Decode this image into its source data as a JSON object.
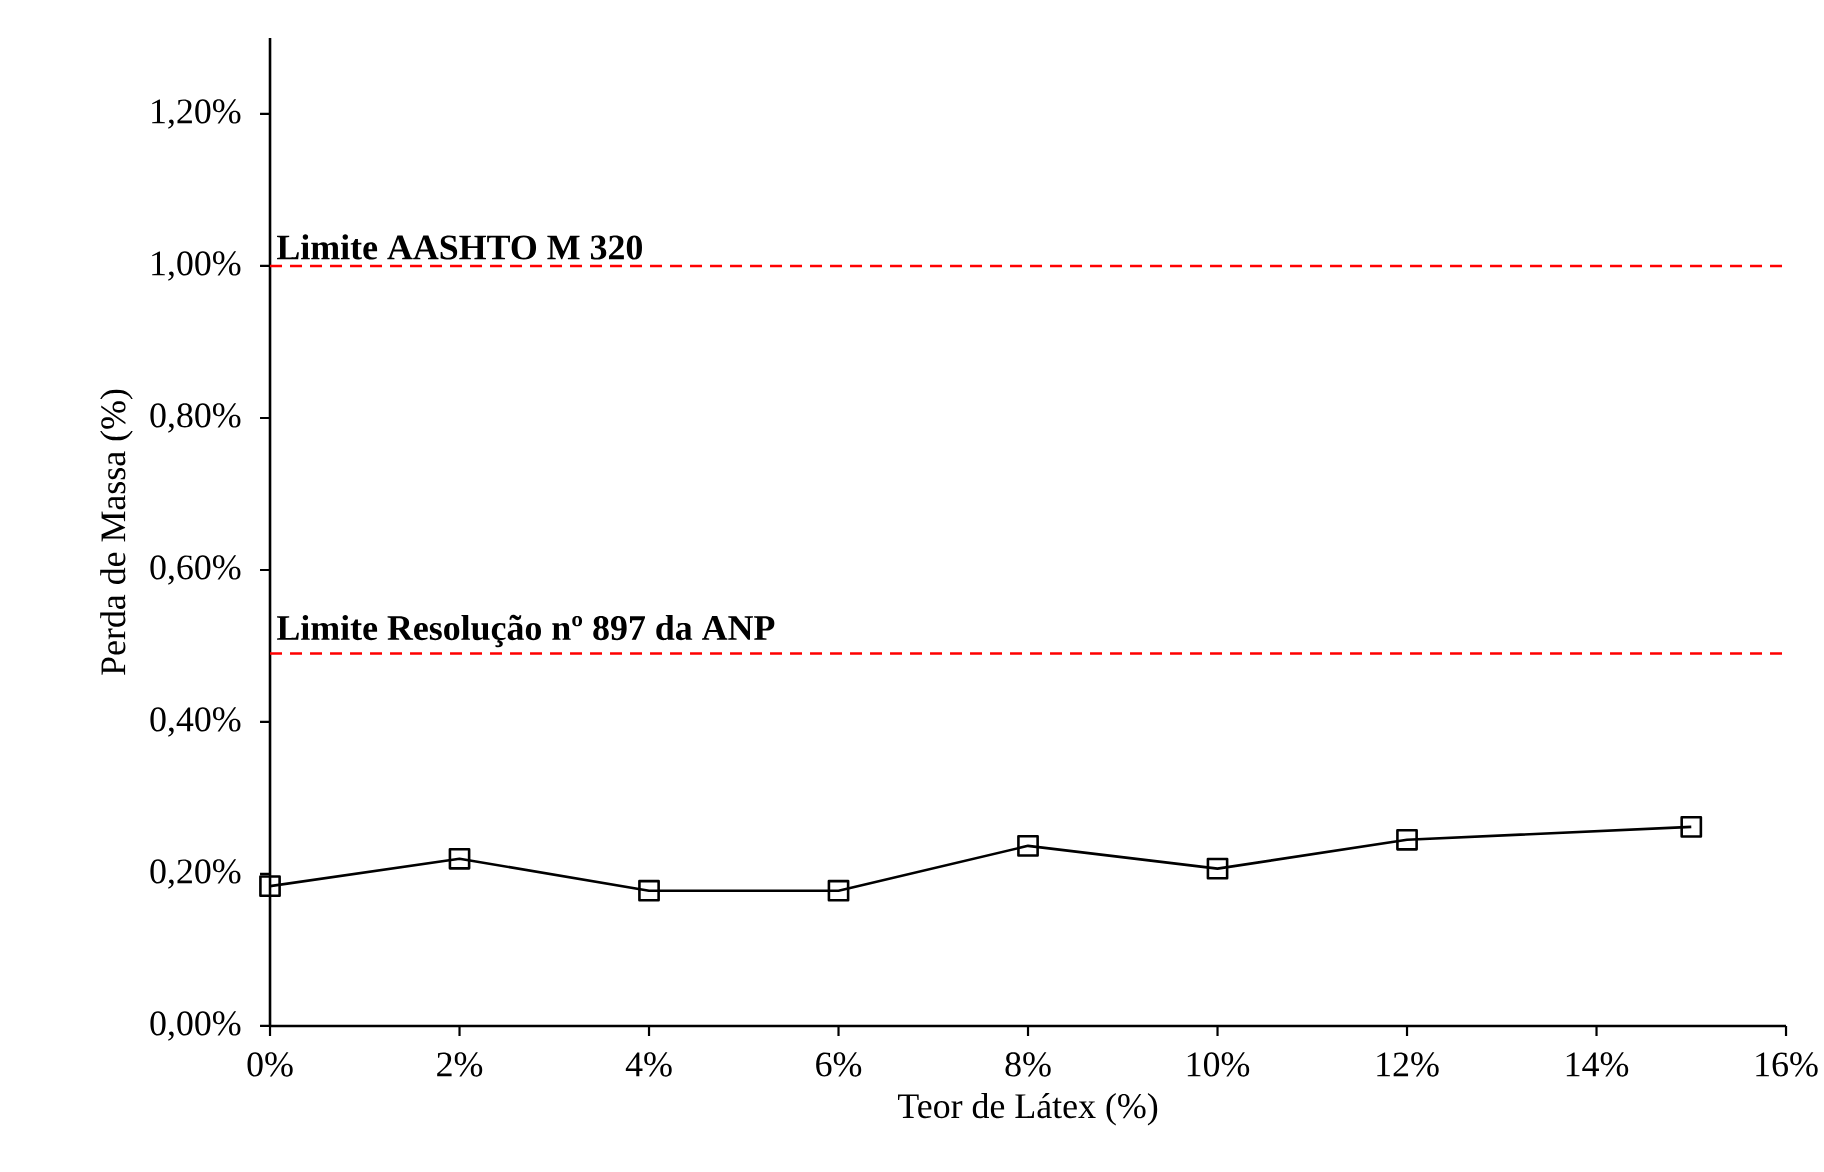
{
  "chart_data": {
    "type": "line",
    "xlabel": "Teor de Látex (%)",
    "ylabel": "Perda de Massa (%)",
    "x": [
      0,
      2,
      4,
      6,
      8,
      10,
      12,
      15
    ],
    "series": [
      {
        "color": "#000000",
        "values": [
          0.184,
          0.22,
          0.178,
          0.178,
          0.237,
          0.207,
          0.245,
          0.262
        ]
      }
    ],
    "xlim": [
      0,
      16
    ],
    "xticks": [
      {
        "value": 0,
        "label": "0%"
      },
      {
        "value": 2,
        "label": "2%"
      },
      {
        "value": 4,
        "label": "4%"
      },
      {
        "value": 6,
        "label": "6%"
      },
      {
        "value": 8,
        "label": "8%"
      },
      {
        "value": 10,
        "label": "10%"
      },
      {
        "value": 12,
        "label": "12%"
      },
      {
        "value": 14,
        "label": "14%"
      },
      {
        "value": 16,
        "label": "16%"
      }
    ],
    "ylim": [
      0,
      1.3
    ],
    "yticks": [
      {
        "value": 0,
        "label": "0,00%"
      },
      {
        "value": 0.2,
        "label": "0,20%"
      },
      {
        "value": 0.4,
        "label": "0,40%"
      },
      {
        "value": 0.6,
        "label": "0,60%"
      },
      {
        "value": 0.8,
        "label": "0,80%"
      },
      {
        "value": 1.0,
        "label": "1,00%"
      },
      {
        "value": 1.2,
        "label": "1,20%"
      }
    ],
    "ref_lines": [
      {
        "axis": "y",
        "value": 1.0,
        "label": "Limite AASHTO M 320",
        "color": "#ff0000",
        "line_style": "dashed"
      },
      {
        "axis": "y",
        "value": 0.49,
        "label": "Limite Resolução nº 897 da ANP",
        "color": "#ff0000",
        "line_style": "dashed"
      }
    ],
    "marker": "square",
    "line_style": "solid",
    "grid": false
  }
}
